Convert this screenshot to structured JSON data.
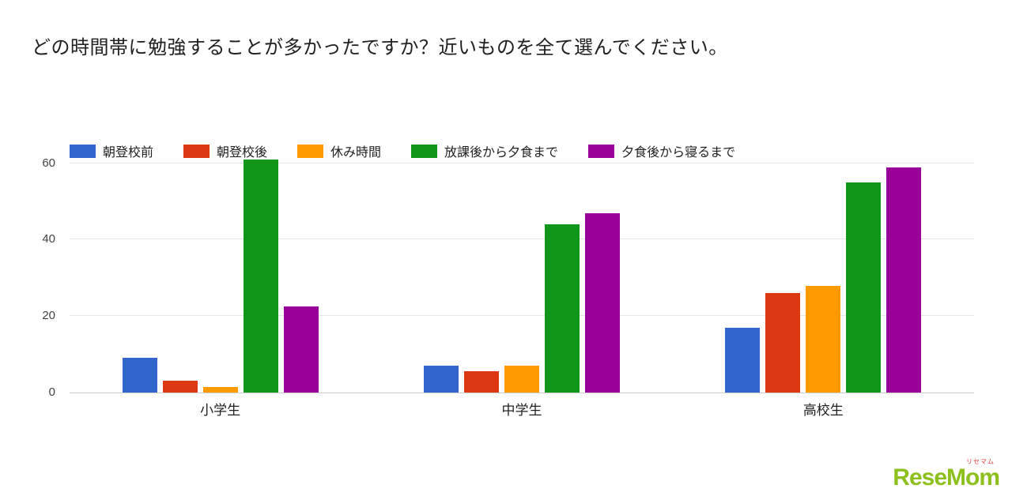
{
  "title": "どの時間帯に勉強することが多かったですか？近いものを全て選んでください。",
  "chart_data": {
    "type": "bar",
    "title": "どの時間帯に勉強することが多かったですか？近いものを全て選んでください。",
    "categories": [
      "小学生",
      "中学生",
      "高校生"
    ],
    "series": [
      {
        "name": "朝登校前",
        "color": "#3366cc",
        "values": [
          9,
          7,
          17
        ]
      },
      {
        "name": "朝登校後",
        "color": "#dc3912",
        "values": [
          3,
          5.5,
          26
        ]
      },
      {
        "name": "休み時間",
        "color": "#ff9900",
        "values": [
          1.5,
          7,
          28
        ]
      },
      {
        "name": "放課後から夕食まで",
        "color": "#109618",
        "values": [
          61,
          44,
          55
        ]
      },
      {
        "name": "夕食後から寝るまで",
        "color": "#990099",
        "values": [
          22.5,
          47,
          59
        ]
      }
    ],
    "xlabel": "",
    "ylabel": "",
    "y_ticks": [
      0,
      20,
      40,
      60
    ],
    "ylim": [
      0,
      62
    ],
    "grid": true,
    "legend_position": "top"
  },
  "watermark": {
    "text": "ReseMom",
    "ruby": "リセマム"
  }
}
